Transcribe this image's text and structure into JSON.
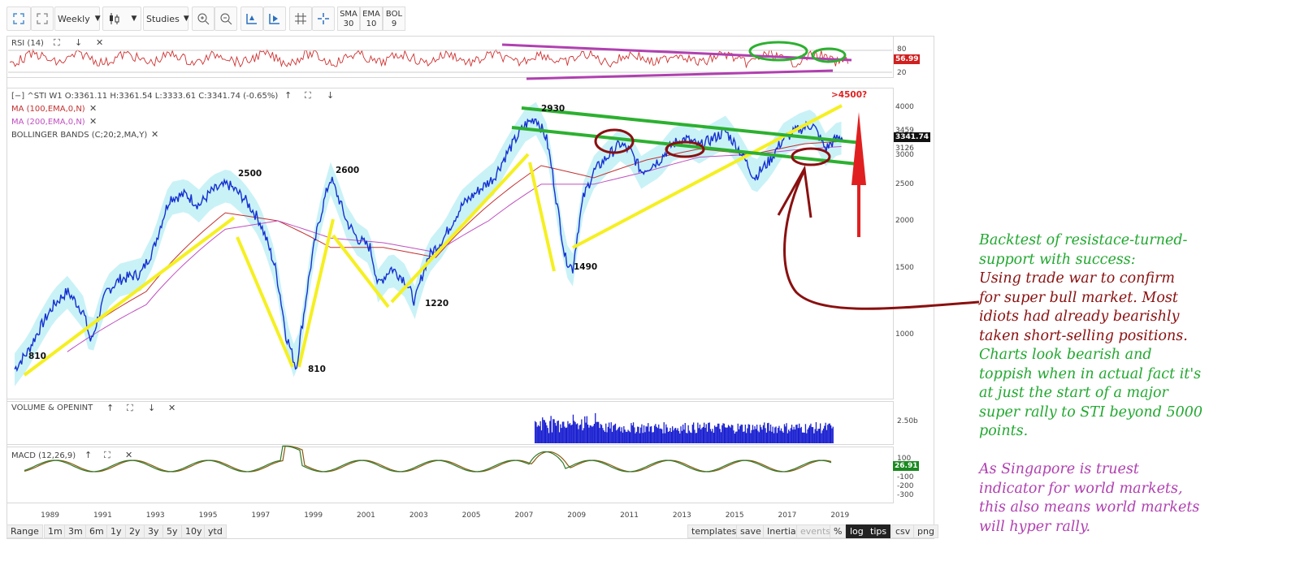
{
  "toolbar": {
    "interval": "Weekly",
    "studies": "Studies",
    "indicators": [
      {
        "name": "SMA",
        "value": "30"
      },
      {
        "name": "EMA",
        "value": "10"
      },
      {
        "name": "BOL",
        "value": "9"
      }
    ]
  },
  "rsi_panel": {
    "label": "RSI (14)",
    "levels": [
      "80",
      "20"
    ],
    "current": "56.99"
  },
  "main_panel": {
    "header": "[−]  ^STI  W1  O:3361.11  H:3361.54  L:3333.61  C:3341.74  (-0.65%)",
    "studies": [
      {
        "label": "MA (100,EMA,0,N)",
        "color": "#c43030"
      },
      {
        "label": "MA (200,EMA,0,N)",
        "color": "#c050c0"
      },
      {
        "label": "BOLLINGER BANDS (C;20;2,MA,Y)",
        "color": "#333333"
      }
    ],
    "y_ticks": [
      "4000",
      "3459",
      "3126",
      "3000",
      "2500",
      "2000",
      "1500",
      "1000"
    ],
    "current_price": "3341.74",
    "annotations": [
      "2930",
      ">4500?",
      "2500",
      "2600",
      "810",
      "810",
      "1220",
      "1490"
    ]
  },
  "volume_panel": {
    "label": "VOLUME & OPENINT",
    "tick": "2.50b"
  },
  "macd_panel": {
    "label": "MACD (12,26,9)",
    "ticks": [
      "100",
      "-100",
      "-200",
      "-300"
    ],
    "current": "26.91"
  },
  "x_axis": [
    "1989",
    "1991",
    "1993",
    "1995",
    "1997",
    "1999",
    "2001",
    "2003",
    "2005",
    "2007",
    "2009",
    "2011",
    "2013",
    "2015",
    "2017",
    "2019"
  ],
  "bottom_bar": {
    "range_label": "Range",
    "ranges": [
      "1m",
      "3m",
      "6m",
      "1y",
      "2y",
      "3y",
      "5y",
      "10y",
      "ytd"
    ],
    "right_buttons": [
      "templates",
      "save",
      "Inertia",
      "events",
      "%",
      "log",
      "tips",
      "csv",
      "png"
    ]
  },
  "notes": [
    {
      "text": "Backtest of resistace-turned-",
      "color": "green"
    },
    {
      "text": "support with success:",
      "color": "green"
    },
    {
      "text": "Using trade war to confirm",
      "color": "red"
    },
    {
      "text": "for super bull market. Most",
      "color": "red"
    },
    {
      "text": "idiots had already bearishly",
      "color": "red"
    },
    {
      "text": "taken short-selling positions.",
      "color": "red"
    },
    {
      "text": "Charts look bearish and",
      "color": "green"
    },
    {
      "text": "toppish when in actual fact it's",
      "color": "green"
    },
    {
      "text": "at just the start of a major",
      "color": "green"
    },
    {
      "text": "super rally to STI beyond 5000",
      "color": "green"
    },
    {
      "text": "points.",
      "color": "green"
    },
    {
      "text": "As Singapore is truest",
      "color": "purple"
    },
    {
      "text": "indicator for world markets,",
      "color": "purple"
    },
    {
      "text": "this also means world markets",
      "color": "purple"
    },
    {
      "text": "will hyper rally.",
      "color": "purple"
    }
  ],
  "chart_data": {
    "type": "line",
    "title": "^STI W1",
    "scale": "log",
    "x_range": [
      1988,
      2020
    ],
    "ylim": [
      700,
      4200
    ],
    "series": [
      {
        "name": "^STI",
        "x": [
          1988.0,
          1988.5,
          1989.0,
          1989.5,
          1990.0,
          1990.6,
          1990.9,
          1991.5,
          1992.0,
          1992.8,
          1993.3,
          1993.9,
          1994.5,
          1995.0,
          1995.5,
          1996.1,
          1996.7,
          1997.3,
          1997.9,
          1998.3,
          1998.7,
          1999.0,
          1999.5,
          2000.0,
          2000.6,
          2001.0,
          2001.5,
          2001.8,
          2002.3,
          2002.8,
          2003.2,
          2003.7,
          2004.3,
          2005.0,
          2005.6,
          2006.2,
          2006.8,
          2007.4,
          2007.8,
          2008.2,
          2008.6,
          2008.9,
          2009.2,
          2009.6,
          2010.0,
          2010.5,
          2011.0,
          2011.4,
          2011.8,
          2012.5,
          2013.0,
          2013.5,
          2014.0,
          2014.5,
          2015.0,
          2015.5,
          2016.1,
          2016.7,
          2017.2,
          2017.8,
          2018.3,
          2018.8,
          2019.2,
          2019.5
        ],
        "values": [
          810,
          900,
          1050,
          1200,
          1300,
          1150,
          950,
          1300,
          1400,
          1450,
          1700,
          2300,
          2350,
          2200,
          2400,
          2500,
          2300,
          2000,
          1500,
          1000,
          810,
          1150,
          1900,
          2600,
          2000,
          1800,
          1700,
          1350,
          1500,
          1400,
          1220,
          1600,
          1800,
          2200,
          2400,
          2600,
          3100,
          3600,
          3750,
          3300,
          2200,
          1600,
          1490,
          2300,
          2700,
          2950,
          3200,
          3050,
          2700,
          2900,
          3200,
          3300,
          3150,
          3300,
          3450,
          3100,
          2600,
          2900,
          3300,
          3500,
          3600,
          3100,
          3300,
          3342
        ]
      },
      {
        "name": "MA (100,EMA,0,N)",
        "x": [
          1990,
          1993,
          1996,
          1998,
          2000,
          2002,
          2004,
          2006,
          2008,
          2010,
          2012,
          2014,
          2016,
          2018,
          2019.5
        ],
        "values": [
          950,
          1300,
          2100,
          2000,
          1700,
          1700,
          1600,
          2200,
          2800,
          2600,
          2900,
          3100,
          3000,
          3200,
          3250
        ]
      },
      {
        "name": "MA (200,EMA,0,N)",
        "x": [
          1990,
          1993,
          1996,
          1998,
          2000,
          2002,
          2004,
          2006,
          2008,
          2010,
          2012,
          2014,
          2016,
          2018,
          2019.5
        ],
        "values": [
          900,
          1200,
          1900,
          2000,
          1800,
          1750,
          1650,
          2000,
          2500,
          2500,
          2700,
          2950,
          3000,
          3100,
          3150
        ]
      }
    ]
  }
}
